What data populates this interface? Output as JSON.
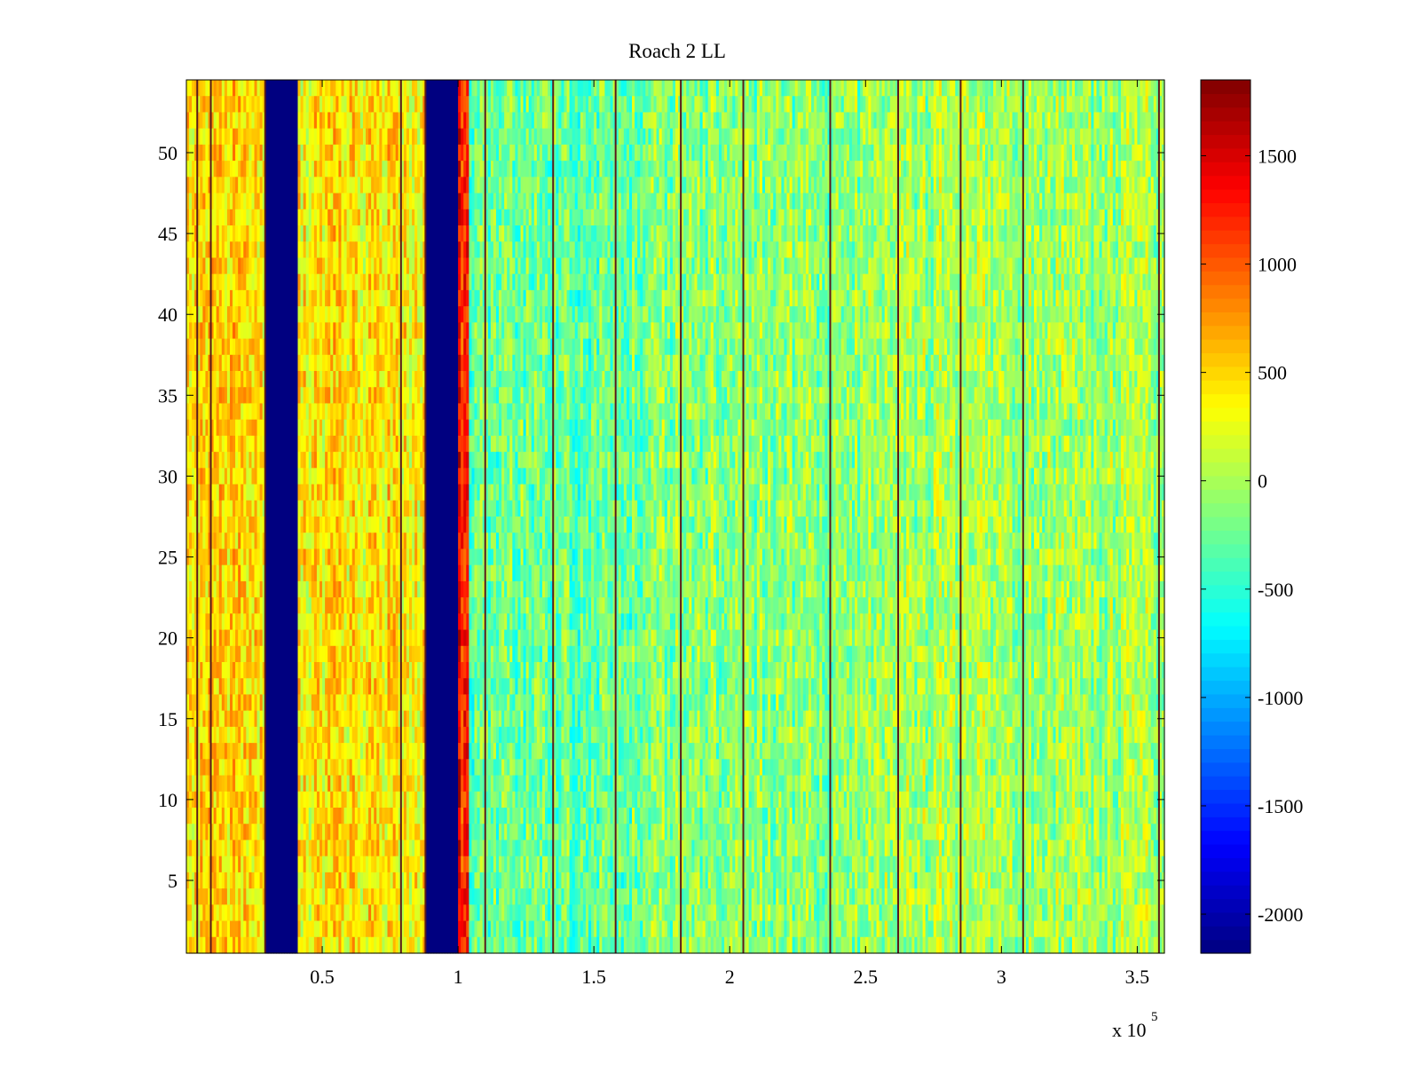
{
  "chart_data": {
    "type": "heatmap",
    "title": "Roach 2 LL",
    "xlabel": "",
    "ylabel": "",
    "x_multiplier_label": {
      "base": "x 10",
      "exponent": "5"
    },
    "xlim": [
      0,
      3.6
    ],
    "ylim": [
      0.5,
      54.5
    ],
    "x_ticks": [
      {
        "value": 0.5,
        "label": "0.5"
      },
      {
        "value": 1,
        "label": "1"
      },
      {
        "value": 1.5,
        "label": "1.5"
      },
      {
        "value": 2,
        "label": "2"
      },
      {
        "value": 2.5,
        "label": "2.5"
      },
      {
        "value": 3,
        "label": "3"
      },
      {
        "value": 3.5,
        "label": "3.5"
      }
    ],
    "y_ticks": [
      {
        "value": 5,
        "label": "5"
      },
      {
        "value": 10,
        "label": "10"
      },
      {
        "value": 15,
        "label": "15"
      },
      {
        "value": 20,
        "label": "20"
      },
      {
        "value": 25,
        "label": "25"
      },
      {
        "value": 30,
        "label": "30"
      },
      {
        "value": 35,
        "label": "35"
      },
      {
        "value": 40,
        "label": "40"
      },
      {
        "value": 45,
        "label": "45"
      },
      {
        "value": 50,
        "label": "50"
      }
    ],
    "rows": 54,
    "colormap": "jet",
    "clim": [
      -2180,
      1850
    ],
    "colorbar_ticks": [
      {
        "value": 1500,
        "label": "1500"
      },
      {
        "value": 1000,
        "label": "1000"
      },
      {
        "value": 500,
        "label": "500"
      },
      {
        "value": 0,
        "label": "0"
      },
      {
        "value": -500,
        "label": "-500"
      },
      {
        "value": -1000,
        "label": "-1000"
      },
      {
        "value": -1500,
        "label": "-1500"
      },
      {
        "value": -2000,
        "label": "-2000"
      }
    ],
    "column_bands": [
      {
        "x_start": 0,
        "x_end": 0.29,
        "mean_value": 450
      },
      {
        "x_start": 0.29,
        "x_end": 0.41,
        "mean_value": -2180
      },
      {
        "x_start": 0.41,
        "x_end": 0.88,
        "mean_value": 400
      },
      {
        "x_start": 0.88,
        "x_end": 1.0,
        "mean_value": -2180
      },
      {
        "x_start": 1.0,
        "x_end": 1.04,
        "mean_value": 1300
      },
      {
        "x_start": 1.04,
        "x_end": 1.7,
        "mean_value": -250
      },
      {
        "x_start": 1.7,
        "x_end": 2.5,
        "mean_value": -120
      },
      {
        "x_start": 2.5,
        "x_end": 3.6,
        "mean_value": -30
      }
    ],
    "streak_lines_x": [
      0.04,
      0.09,
      0.29,
      0.79,
      0.88,
      1.1,
      1.35,
      1.58,
      1.82,
      2.05,
      2.37,
      2.62,
      2.85,
      3.08,
      3.58
    ]
  }
}
